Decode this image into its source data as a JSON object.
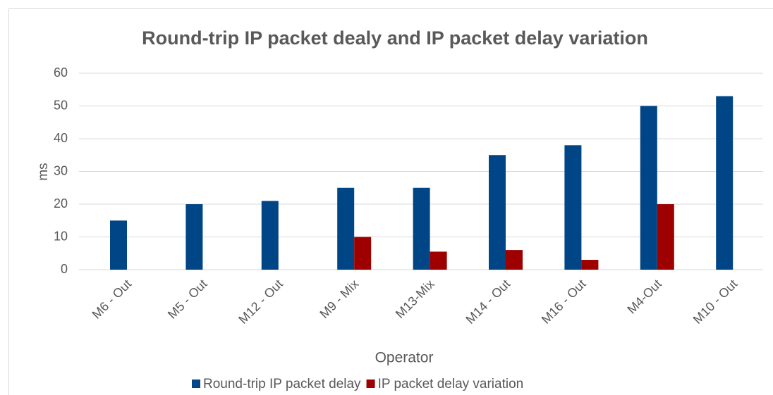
{
  "chart_data": {
    "type": "bar",
    "title": "Round-trip IP packet dealy and IP packet delay variation",
    "x_label": "Operator",
    "y_label": "ms",
    "categories": [
      "M6 - Out",
      "M5 - Out",
      "M12 - Out",
      "M9 - Mix",
      "M13-Mix",
      "M14 - Out",
      "M16 - Out",
      "M4-Out",
      "M10 - Out"
    ],
    "series": [
      {
        "name": "Round-trip IP packet delay",
        "color": "#004586",
        "values": [
          15,
          20,
          21,
          25,
          25,
          35,
          38,
          50,
          53
        ]
      },
      {
        "name": "IP packet delay variation",
        "color": "#9e0000",
        "values": [
          null,
          null,
          null,
          10,
          5.5,
          6,
          3,
          20,
          null
        ]
      }
    ],
    "ylim": [
      0,
      60
    ],
    "yticks": [
      0,
      10,
      20,
      30,
      40,
      50,
      60
    ],
    "grid": true,
    "legend": "bottom"
  }
}
